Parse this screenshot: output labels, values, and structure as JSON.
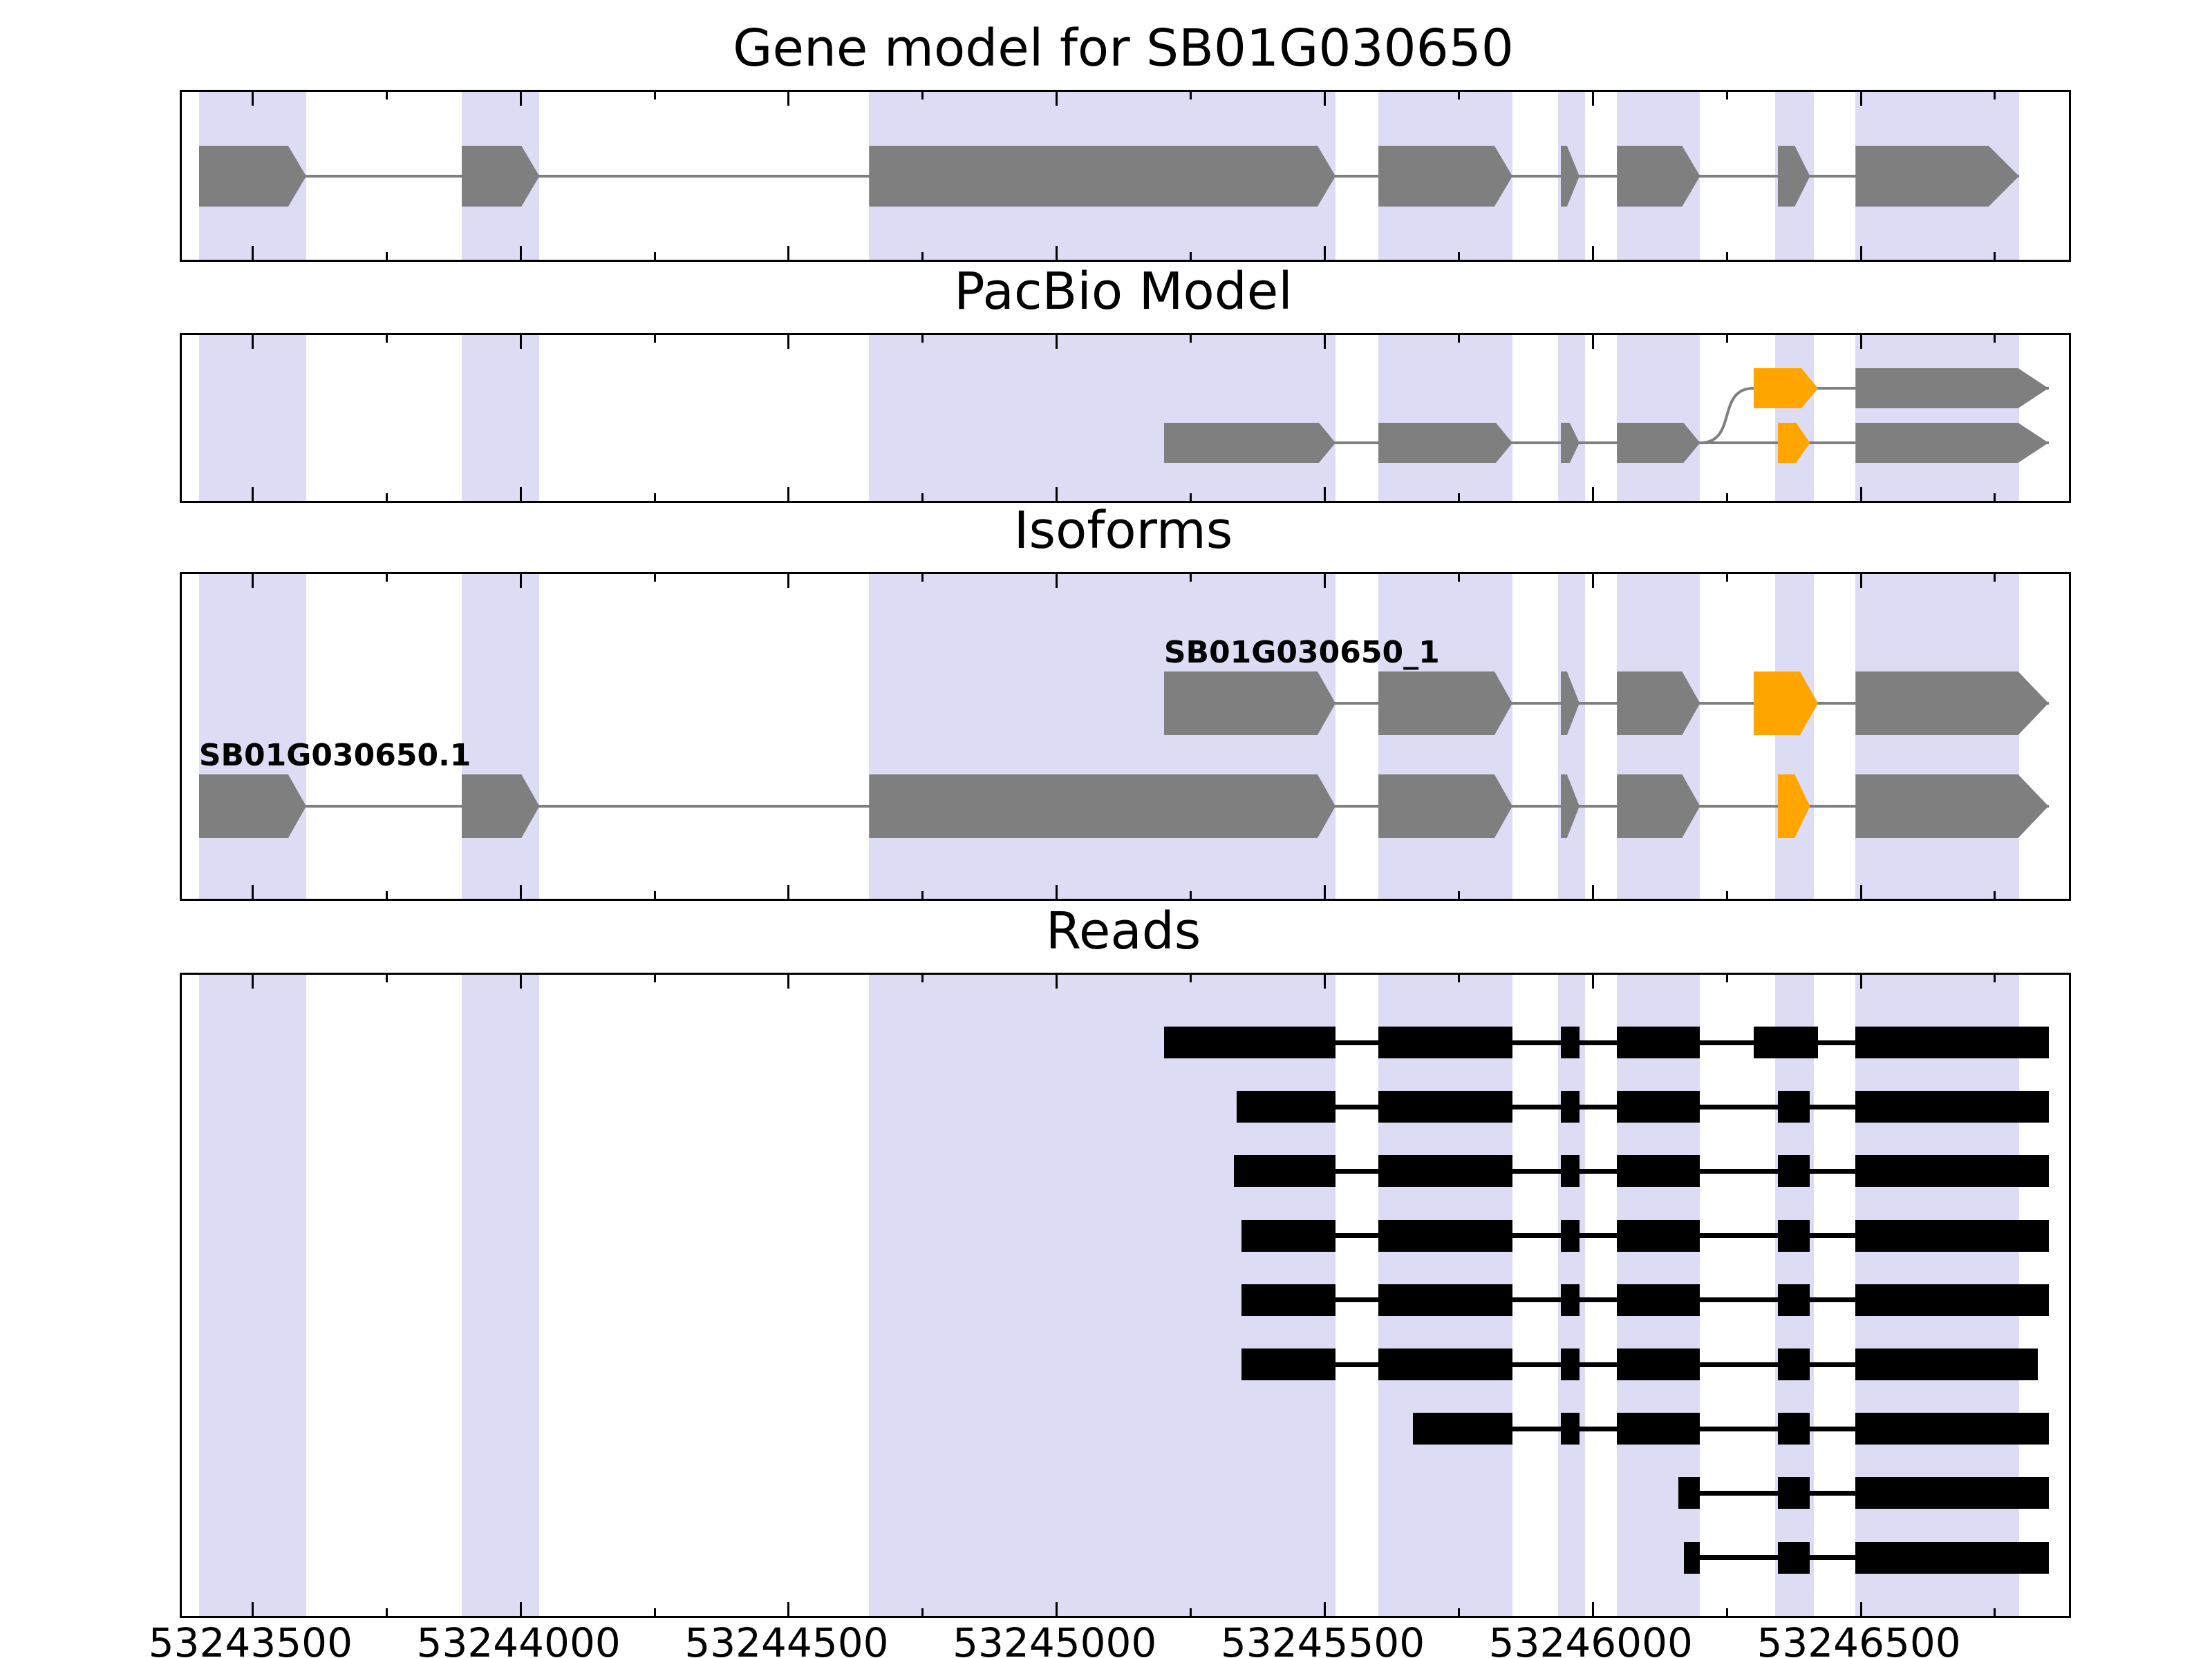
{
  "chart_data": {
    "type": "genome-track",
    "title": "Gene model for SB01G030650",
    "colors": {
      "background": "#ffffff",
      "band": "#dcdcf5",
      "exon": "#7f7f7f",
      "highlight": "#ffa500",
      "intron": "#7f7f7f",
      "read": "#000000",
      "axis": "#000000"
    },
    "axis": {
      "xmin": 53243368,
      "xmax": 53246888,
      "major_step": 500,
      "minor_step": 250,
      "major_ticks": [
        53243500,
        53244000,
        53244500,
        53245000,
        53245500,
        53246000,
        53246500
      ],
      "tick_labels": [
        "53243500",
        "53244000",
        "53244500",
        "53245000",
        "53245500",
        "53246000",
        "53246500"
      ]
    },
    "bands": [
      [
        53243400,
        53243600
      ],
      [
        53243890,
        53244035
      ],
      [
        53244650,
        53245520
      ],
      [
        53245600,
        53245850
      ],
      [
        53245935,
        53245985
      ],
      [
        53246045,
        53246200
      ],
      [
        53246340,
        53246412
      ],
      [
        53246490,
        53246795
      ]
    ],
    "panels": [
      {
        "key": "gene_model",
        "title": "Gene model for SB01G030650",
        "tracks": [
          {
            "row": 0,
            "exons": [
              {
                "s": 53243400,
                "e": 53243600,
                "color": "gray",
                "point": 26
              },
              {
                "s": 53243890,
                "e": 53244035,
                "color": "gray",
                "point": 26
              },
              {
                "s": 53244650,
                "e": 53245520,
                "color": "gray",
                "point": 26
              },
              {
                "s": 53245600,
                "e": 53245850,
                "color": "gray",
                "point": 26
              },
              {
                "s": 53245940,
                "e": 53245975,
                "color": "gray",
                "point": 18
              },
              {
                "s": 53246045,
                "e": 53246200,
                "color": "gray",
                "point": 26
              },
              {
                "s": 53246345,
                "e": 53246405,
                "color": "gray",
                "point": 22
              },
              {
                "s": 53246490,
                "e": 53246795,
                "color": "gray",
                "point": 44
              }
            ]
          }
        ]
      },
      {
        "key": "pacbio",
        "title": "PacBio Model",
        "junction_curve": {
          "from": 53246200,
          "to": 53246300
        },
        "tracks": [
          {
            "row": 0,
            "exons": [
              {
                "s": 53246300,
                "e": 53246420,
                "color": "orange",
                "point": 24
              },
              {
                "s": 53246490,
                "e": 53246850,
                "color": "gray",
                "point": 44
              }
            ]
          },
          {
            "row": 1,
            "exons": [
              {
                "s": 53245200,
                "e": 53245520,
                "color": "gray",
                "point": 24
              },
              {
                "s": 53245600,
                "e": 53245850,
                "color": "gray",
                "point": 24
              },
              {
                "s": 53245940,
                "e": 53245975,
                "color": "gray",
                "point": 14
              },
              {
                "s": 53246045,
                "e": 53246200,
                "color": "gray",
                "point": 24
              },
              {
                "s": 53246345,
                "e": 53246405,
                "color": "orange",
                "point": 20
              },
              {
                "s": 53246490,
                "e": 53246850,
                "color": "gray",
                "point": 44
              }
            ]
          }
        ]
      },
      {
        "key": "isoforms",
        "title": "Isoforms",
        "tracks": [
          {
            "row": 0,
            "label": "SB01G030650_1",
            "exons": [
              {
                "s": 53245200,
                "e": 53245520,
                "color": "gray",
                "point": 26
              },
              {
                "s": 53245600,
                "e": 53245850,
                "color": "gray",
                "point": 26
              },
              {
                "s": 53245940,
                "e": 53245975,
                "color": "gray",
                "point": 18
              },
              {
                "s": 53246045,
                "e": 53246200,
                "color": "gray",
                "point": 26
              },
              {
                "s": 53246300,
                "e": 53246420,
                "color": "orange",
                "point": 26
              },
              {
                "s": 53246490,
                "e": 53246850,
                "color": "gray",
                "point": 44
              }
            ]
          },
          {
            "row": 1,
            "label": "SB01G030650.1",
            "exons": [
              {
                "s": 53243400,
                "e": 53243600,
                "color": "gray",
                "point": 26
              },
              {
                "s": 53243890,
                "e": 53244035,
                "color": "gray",
                "point": 26
              },
              {
                "s": 53244650,
                "e": 53245520,
                "color": "gray",
                "point": 26
              },
              {
                "s": 53245600,
                "e": 53245850,
                "color": "gray",
                "point": 26
              },
              {
                "s": 53245940,
                "e": 53245975,
                "color": "gray",
                "point": 18
              },
              {
                "s": 53246045,
                "e": 53246200,
                "color": "gray",
                "point": 26
              },
              {
                "s": 53246345,
                "e": 53246405,
                "color": "orange",
                "point": 22
              },
              {
                "s": 53246490,
                "e": 53246850,
                "color": "gray",
                "point": 44
              }
            ]
          }
        ]
      },
      {
        "key": "reads",
        "title": "Reads",
        "reads": [
          {
            "blocks": [
              [
                53245200,
                53245520
              ],
              [
                53245600,
                53245850
              ],
              [
                53245940,
                53245975
              ],
              [
                53246045,
                53246200
              ],
              [
                53246300,
                53246420
              ],
              [
                53246490,
                53246850
              ]
            ]
          },
          {
            "blocks": [
              [
                53245335,
                53245520
              ],
              [
                53245600,
                53245850
              ],
              [
                53245940,
                53245975
              ],
              [
                53246045,
                53246200
              ],
              [
                53246345,
                53246405
              ],
              [
                53246490,
                53246850
              ]
            ]
          },
          {
            "blocks": [
              [
                53245330,
                53245520
              ],
              [
                53245600,
                53245850
              ],
              [
                53245940,
                53245975
              ],
              [
                53246045,
                53246200
              ],
              [
                53246345,
                53246405
              ],
              [
                53246490,
                53246850
              ]
            ]
          },
          {
            "blocks": [
              [
                53245345,
                53245520
              ],
              [
                53245600,
                53245850
              ],
              [
                53245940,
                53245975
              ],
              [
                53246045,
                53246200
              ],
              [
                53246345,
                53246405
              ],
              [
                53246490,
                53246850
              ]
            ]
          },
          {
            "blocks": [
              [
                53245345,
                53245520
              ],
              [
                53245600,
                53245850
              ],
              [
                53245940,
                53245975
              ],
              [
                53246045,
                53246200
              ],
              [
                53246345,
                53246405
              ],
              [
                53246490,
                53246850
              ]
            ]
          },
          {
            "blocks": [
              [
                53245345,
                53245520
              ],
              [
                53245600,
                53245850
              ],
              [
                53245940,
                53245975
              ],
              [
                53246045,
                53246200
              ],
              [
                53246345,
                53246405
              ],
              [
                53246490,
                53246830
              ]
            ]
          },
          {
            "blocks": [
              [
                53245665,
                53245850
              ],
              [
                53245940,
                53245975
              ],
              [
                53246045,
                53246200
              ],
              [
                53246345,
                53246405
              ],
              [
                53246490,
                53246850
              ]
            ]
          },
          {
            "blocks": [
              [
                53246160,
                53246200
              ],
              [
                53246345,
                53246405
              ],
              [
                53246490,
                53246850
              ]
            ]
          },
          {
            "blocks": [
              [
                53246170,
                53246200
              ],
              [
                53246345,
                53246405
              ],
              [
                53246490,
                53246850
              ]
            ]
          }
        ]
      }
    ]
  }
}
